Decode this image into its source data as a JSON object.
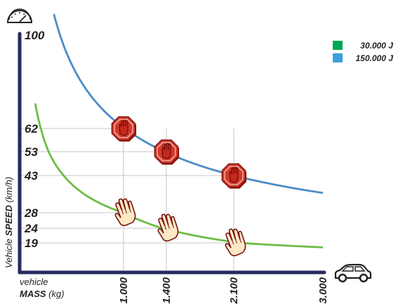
{
  "chart_data": {
    "type": "line",
    "xlabel": {
      "line1": "vehicle",
      "bold": "MASS",
      "unit": " (kg)"
    },
    "ylabel": {
      "prefix": "Vehicle ",
      "bold": "SPEED",
      "unit": " (km/h)"
    },
    "x_ticks": [
      "1.000",
      "1.400",
      "2.100",
      "3.000"
    ],
    "x_values": [
      1000,
      1400,
      2100,
      3000
    ],
    "y_ticks": [
      100,
      62,
      53,
      43,
      28,
      24,
      19
    ],
    "y_tick_labels": [
      "100",
      "62",
      "53",
      "43",
      "28",
      "24",
      "19"
    ],
    "xlim": [
      0,
      3000
    ],
    "ylim": [
      0,
      100
    ],
    "series": [
      {
        "name": "30.000 J",
        "color": "#00a651",
        "curve_color": "#6cbd45",
        "marker": "hand",
        "points": [
          [
            1000,
            28
          ],
          [
            1400,
            24
          ],
          [
            2100,
            19
          ]
        ]
      },
      {
        "name": "150.000 J",
        "color": "#3aa0dc",
        "curve_color": "#4a8cc8",
        "marker": "stop-sign",
        "points": [
          [
            1000,
            62
          ],
          [
            1400,
            53
          ],
          [
            2100,
            43
          ]
        ]
      }
    ],
    "legend_position": "top-right",
    "grid": "guide lines at marked points",
    "icons": [
      "speedometer-icon",
      "car-icon"
    ]
  }
}
